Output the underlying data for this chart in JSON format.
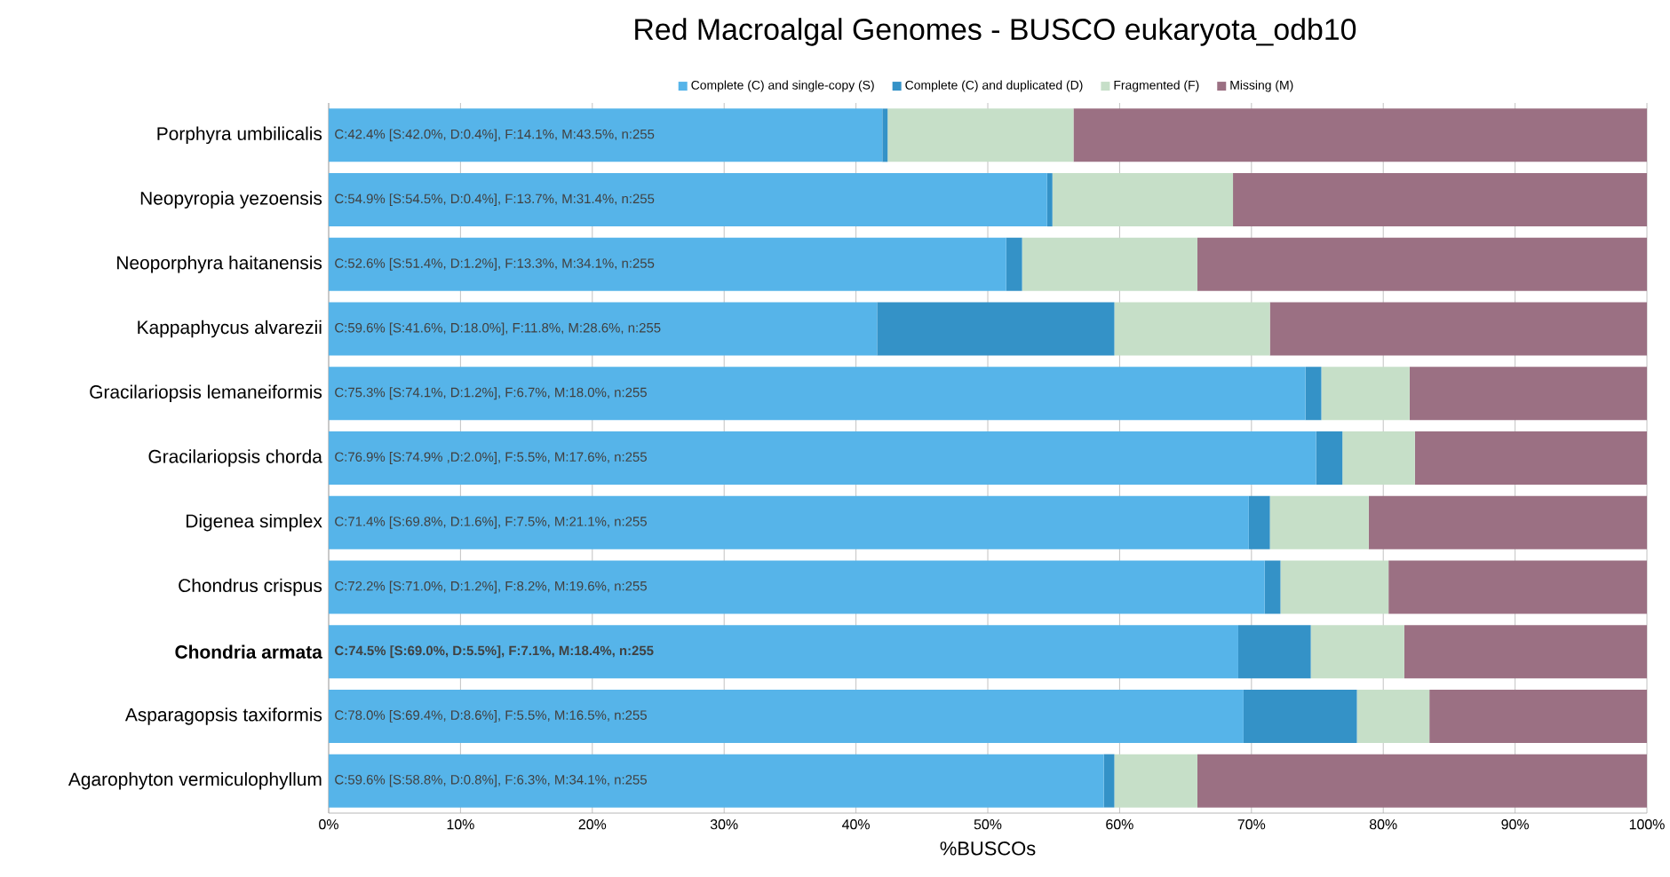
{
  "chart_data": {
    "type": "bar",
    "orientation": "horizontal",
    "stacked": true,
    "title": "Red Macroalgal Genomes - BUSCO eukaryota_odb10",
    "xlabel": "%BUSCOs",
    "categories": [
      "Porphyra umbilicalis",
      "Neopyropia yezoensis",
      "Neoporphyra haitanensis",
      "Kappaphycus alvarezii",
      "Gracilariopsis lemaneiformis",
      "Gracilariopsis chorda",
      "Digenea simplex",
      "Chondrus crispus",
      "**Chondria armata**",
      "Asparagopsis taxiformis",
      "Agarophyton vermiculophyllum"
    ],
    "series": [
      {
        "name": "Complete (C) and single-copy (S)",
        "color": "#56b4e9",
        "values": [
          42.0,
          54.5,
          51.4,
          41.6,
          74.1,
          74.9,
          69.8,
          71.0,
          69.0,
          69.4,
          58.8
        ]
      },
      {
        "name": "Complete (C) and duplicated (D)",
        "color": "#3492c7",
        "values": [
          0.4,
          0.4,
          1.2,
          18.0,
          1.2,
          2.0,
          1.6,
          1.2,
          5.5,
          8.6,
          0.8
        ]
      },
      {
        "name": "Fragmented (F)",
        "color": "#c6dfc8",
        "values": [
          14.1,
          13.7,
          13.3,
          11.8,
          6.7,
          5.5,
          7.5,
          8.2,
          7.1,
          5.5,
          6.3
        ]
      },
      {
        "name": "Missing (M)",
        "color": "#9b7083",
        "values": [
          43.5,
          31.4,
          34.1,
          28.6,
          18.0,
          17.6,
          21.1,
          19.6,
          18.4,
          16.5,
          34.1
        ]
      }
    ],
    "xlim": [
      0,
      100
    ],
    "xticks": [
      {
        "value": 0,
        "label": "0%"
      },
      {
        "value": 10,
        "label": "10%"
      },
      {
        "value": 20,
        "label": "20%"
      },
      {
        "value": 30,
        "label": "30%"
      },
      {
        "value": 40,
        "label": "40%"
      },
      {
        "value": 50,
        "label": "50%"
      },
      {
        "value": 60,
        "label": "60%"
      },
      {
        "value": 70,
        "label": "70%"
      },
      {
        "value": 80,
        "label": "80%"
      },
      {
        "value": 90,
        "label": "90%"
      },
      {
        "value": 100,
        "label": "100%"
      }
    ],
    "grid": "x",
    "legend": "top",
    "annotations": [
      {
        "text": "C:42.4% [S:42.0%, D:0.4%], F:14.1%, M:43.5%, n:255",
        "y": "Porphyra umbilicalis"
      },
      {
        "text": "C:54.9% [S:54.5%, D:0.4%], F:13.7%, M:31.4%, n:255",
        "y": "Neopyropia yezoensis"
      },
      {
        "text": "C:52.6% [S:51.4%, D:1.2%], F:13.3%, M:34.1%, n:255",
        "y": "Neoporphyra haitanensis"
      },
      {
        "text": "C:59.6% [S:41.6%, D:18.0%], F:11.8%, M:28.6%, n:255",
        "y": "Kappaphycus alvarezii"
      },
      {
        "text": "C:75.3% [S:74.1%, D:1.2%], F:6.7%, M:18.0%, n:255",
        "y": "Gracilariopsis lemaneiformis"
      },
      {
        "text": "C:76.9% [S:74.9% ,D:2.0%], F:5.5%, M:17.6%, n:255",
        "y": "Gracilariopsis chorda"
      },
      {
        "text": "C:71.4% [S:69.8%, D:1.6%], F:7.5%, M:21.1%, n:255",
        "y": "Digenea simplex"
      },
      {
        "text": "C:72.2% [S:71.0%, D:1.2%], F:8.2%, M:19.6%, n:255",
        "y": "Chondrus crispus"
      },
      {
        "text": "**C:74.5% [S:69.0%, D:5.5%], F:7.1%, M:18.4%, n:255**",
        "y": "**Chondria armata**"
      },
      {
        "text": "C:78.0% [S:69.4%, D:8.6%], F:5.5%, M:16.5%, n:255",
        "y": "Asparagopsis taxiformis"
      },
      {
        "text": "C:59.6% [S:58.8%, D:0.8%], F:6.3%, M:34.1%, n:255",
        "y": "Agarophyton vermiculophyllum"
      }
    ]
  }
}
